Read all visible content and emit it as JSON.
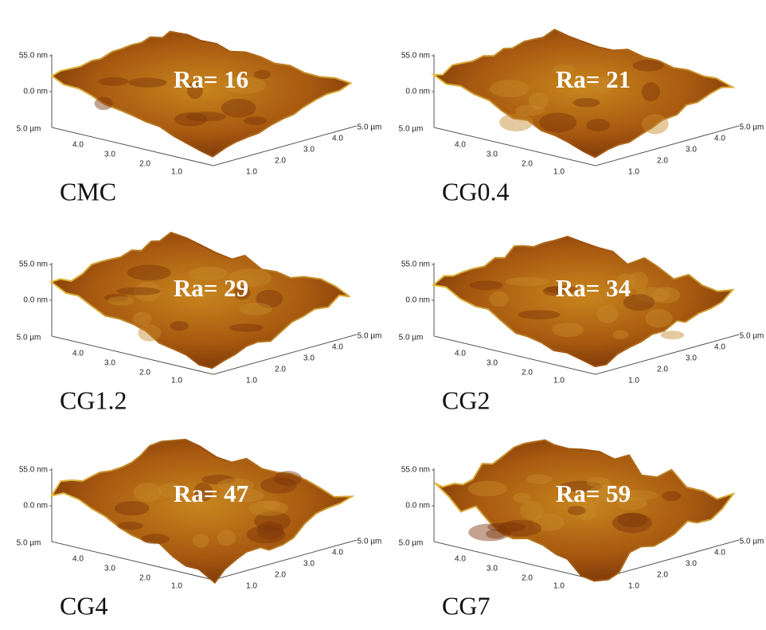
{
  "panels": [
    {
      "label": "CMC",
      "ra": "Ra= 16",
      "z_labels": [
        "55.0 nm",
        "0.0 nm"
      ],
      "left_axis": [
        "5.0 µm",
        "4.0",
        "3.0",
        "2.0",
        "1.0"
      ],
      "right_axis": [
        "1.0",
        "2.0",
        "3.0",
        "4.0",
        "5.0 µm"
      ]
    },
    {
      "label": "CG0.4",
      "ra": "Ra= 21",
      "z_labels": [
        "55.0 nm",
        "0.0 nm"
      ],
      "left_axis": [
        "5.0 µm",
        "4.0",
        "3.0",
        "2.0",
        "1.0"
      ],
      "right_axis": [
        "1.0",
        "2.0",
        "3.0",
        "4.0",
        "5.0 µm"
      ]
    },
    {
      "label": "CG1.2",
      "ra": "Ra= 29",
      "z_labels": [
        "55.0 nm",
        "0.0 nm"
      ],
      "left_axis": [
        "5.0 µm",
        "4.0",
        "3.0",
        "2.0",
        "1.0"
      ],
      "right_axis": [
        "1.0",
        "2.0",
        "3.0",
        "4.0",
        "5.0 µm"
      ]
    },
    {
      "label": "CG2",
      "ra": "Ra= 34",
      "z_labels": [
        "55.0 nm",
        "0.0 nm"
      ],
      "left_axis": [
        "5.0 µm",
        "4.0",
        "3.0",
        "2.0",
        "1.0"
      ],
      "right_axis": [
        "1.0",
        "2.0",
        "3.0",
        "4.0",
        "5.0 µm"
      ]
    },
    {
      "label": "CG4",
      "ra": "Ra= 47",
      "z_labels": [
        "55.0 nm",
        "0.0 nm"
      ],
      "left_axis": [
        "5.0 µm",
        "4.0",
        "3.0",
        "2.0",
        "1.0"
      ],
      "right_axis": [
        "1.0",
        "2.0",
        "3.0",
        "4.0",
        "5.0 µm"
      ]
    },
    {
      "label": "CG7",
      "ra": "Ra= 59",
      "z_labels": [
        "55.0 nm",
        "0.0 nm"
      ],
      "left_axis": [
        "5.0 µm",
        "4.0",
        "3.0",
        "2.0",
        "1.0"
      ],
      "right_axis": [
        "1.0",
        "2.0",
        "3.0",
        "4.0",
        "5.0 µm"
      ]
    }
  ]
}
